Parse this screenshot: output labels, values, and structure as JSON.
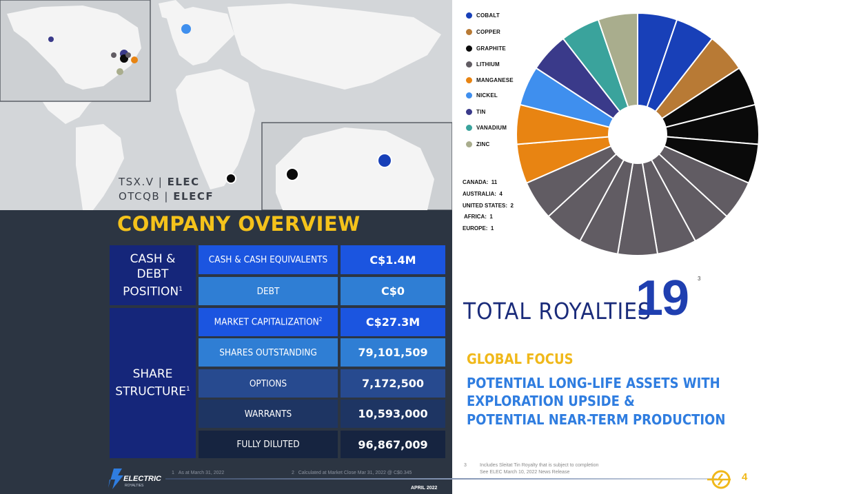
{
  "ticker": {
    "line1_prefix": "TSX.V | ",
    "line1_symbol": "ELEC",
    "line2_prefix": "OTCQB | ",
    "line2_symbol": "ELECF"
  },
  "overview": {
    "title": "COMPANY OVERVIEW",
    "sections": [
      {
        "header": [
          "CASH &",
          "DEBT",
          "POSITION"
        ],
        "sup": "1"
      },
      {
        "header": [
          "SHARE",
          "STRUCTURE"
        ],
        "sup": "1"
      }
    ],
    "rows": [
      {
        "label": "CASH & CASH EQUIVALENTS",
        "sup": "",
        "value": "C$1.4M"
      },
      {
        "label": "DEBT",
        "sup": "",
        "value": "C$0"
      },
      {
        "label": "MARKET CAPITALIZATION",
        "sup": "2",
        "value": "C$27.3M"
      },
      {
        "label": "SHARES OUTSTANDING",
        "sup": "",
        "value": "79,101,509"
      },
      {
        "label": "OPTIONS",
        "sup": "",
        "value": "7,172,500"
      },
      {
        "label": "WARRANTS",
        "sup": "",
        "value": "10,593,000"
      },
      {
        "label": "FULLY DILUTED",
        "sup": "",
        "value": "96,867,009"
      }
    ]
  },
  "footnotes_left": [
    {
      "num": "1",
      "text": "As at March 31, 2022"
    },
    {
      "num": "2",
      "text": "Calculated at Market Close Mar 31, 2022 @ C$0.345"
    }
  ],
  "logo": {
    "text": "ELECTRIC",
    "subtext": "ROYALTIES"
  },
  "left_date": "APRIL 2022",
  "legend": [
    {
      "label": "COBALT",
      "color": "#1840b8"
    },
    {
      "label": "COPPER",
      "color": "#b87a35"
    },
    {
      "label": "GRAPHITE",
      "color": "#0a0a0a"
    },
    {
      "label": "LITHIUM",
      "color": "#615c63"
    },
    {
      "label": "MANGANESE",
      "color": "#e88412"
    },
    {
      "label": "NICKEL",
      "color": "#3f8fee"
    },
    {
      "label": "TIN",
      "color": "#3a3a8a"
    },
    {
      "label": "VANADIUM",
      "color": "#3aa39c"
    },
    {
      "label": "ZINC",
      "color": "#a9ad8d"
    }
  ],
  "counts": [
    {
      "label": "CANADA:",
      "value": "11"
    },
    {
      "label": "AUSTRALIA:",
      "value": "4"
    },
    {
      "label": "UNITED STATES:",
      "value": "2"
    },
    {
      "label": "AFRICA:",
      "value": "1"
    },
    {
      "label": "EUROPE:",
      "value": "1"
    }
  ],
  "chart_data": {
    "type": "pie",
    "segments": [
      "Cobalt",
      "Cobalt",
      "Copper",
      "Graphite",
      "Graphite",
      "Graphite",
      "Lithium",
      "Lithium",
      "Lithium",
      "Lithium",
      "Lithium",
      "Lithium",
      "Lithium",
      "Manganese",
      "Manganese",
      "Nickel",
      "Tin",
      "Vanadium",
      "Zinc"
    ],
    "values": [
      1,
      1,
      1,
      1,
      1,
      1,
      1,
      1,
      1,
      1,
      1,
      1,
      1,
      1,
      1,
      1,
      1,
      1,
      1
    ],
    "colors": [
      "#1840b8",
      "#1840b8",
      "#b87a35",
      "#0a0a0a",
      "#0a0a0a",
      "#0a0a0a",
      "#615c63",
      "#615c63",
      "#615c63",
      "#615c63",
      "#615c63",
      "#615c63",
      "#615c63",
      "#e88412",
      "#e88412",
      "#3f8fee",
      "#3a3a8a",
      "#3aa39c",
      "#a9ad8d"
    ],
    "series_legend": [
      "COBALT",
      "COPPER",
      "GRAPHITE",
      "LITHIUM",
      "MANGANESE",
      "NICKEL",
      "TIN",
      "VANADIUM",
      "ZINC"
    ],
    "donut": true,
    "start": "top, clockwise"
  },
  "total": {
    "label": "TOTAL ROYALTIES",
    "value": "19",
    "sup": "3"
  },
  "focus": {
    "heading": "GLOBAL FOCUS",
    "lines": [
      "POTENTIAL LONG-LIFE ASSETS WITH",
      "EXPLORATION UPSIDE &",
      "POTENTIAL NEAR-TERM PRODUCTION"
    ]
  },
  "footnote_right": {
    "num": "3",
    "line1": "Includes Sleitat Tin Royalty that is subject to completion",
    "line2": "See ELEC March 10, 2022 News Release"
  },
  "page_number": "4"
}
